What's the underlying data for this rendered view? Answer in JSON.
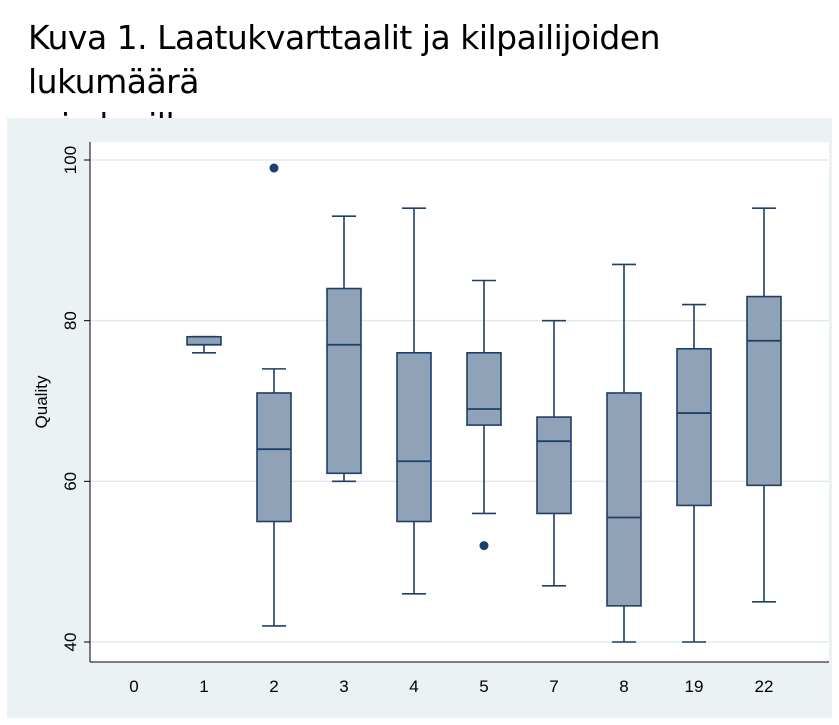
{
  "title": {
    "line1": "Kuva 1. Laatukvarttaalit ja kilpailijoiden lukumäärä",
    "line2": "eri alueilla"
  },
  "colors": {
    "box_fill": "#8fa2b7",
    "box_stroke": "#1e3f66",
    "outlier": "#1e3f66",
    "plot_bg": "#ffffff",
    "figure_bg": "#eaf2f3",
    "grid": "#e4eaeb"
  },
  "chart_data": {
    "type": "box",
    "xlabel": "",
    "ylabel": "Quality",
    "ylim": [
      40,
      100
    ],
    "yticks": [
      40,
      60,
      80,
      100
    ],
    "grid": true,
    "categories": [
      "0",
      "1",
      "2",
      "3",
      "4",
      "5",
      "7",
      "8",
      "19",
      "22"
    ],
    "boxes": [
      null,
      {
        "min": 76,
        "q1": 77,
        "median": 77,
        "q3": 78,
        "max": 78,
        "outliers": []
      },
      {
        "min": 42,
        "q1": 55,
        "median": 64,
        "q3": 71,
        "max": 74,
        "outliers": [
          99
        ]
      },
      {
        "min": 60,
        "q1": 61,
        "median": 77,
        "q3": 84,
        "max": 93,
        "outliers": []
      },
      {
        "min": 46,
        "q1": 55,
        "median": 62.5,
        "q3": 76,
        "max": 94,
        "outliers": []
      },
      {
        "min": 56,
        "q1": 67,
        "median": 69,
        "q3": 76,
        "max": 85,
        "outliers": [
          52
        ]
      },
      {
        "min": 47,
        "q1": 56,
        "median": 65,
        "q3": 68,
        "max": 80,
        "outliers": []
      },
      {
        "min": 40,
        "q1": 44.5,
        "median": 55.5,
        "q3": 71,
        "max": 87,
        "outliers": []
      },
      {
        "min": 40,
        "q1": 57,
        "median": 68.5,
        "q3": 76.5,
        "max": 82,
        "outliers": []
      },
      {
        "min": 45,
        "q1": 59.5,
        "median": 77.5,
        "q3": 83,
        "max": 94,
        "outliers": []
      }
    ]
  }
}
